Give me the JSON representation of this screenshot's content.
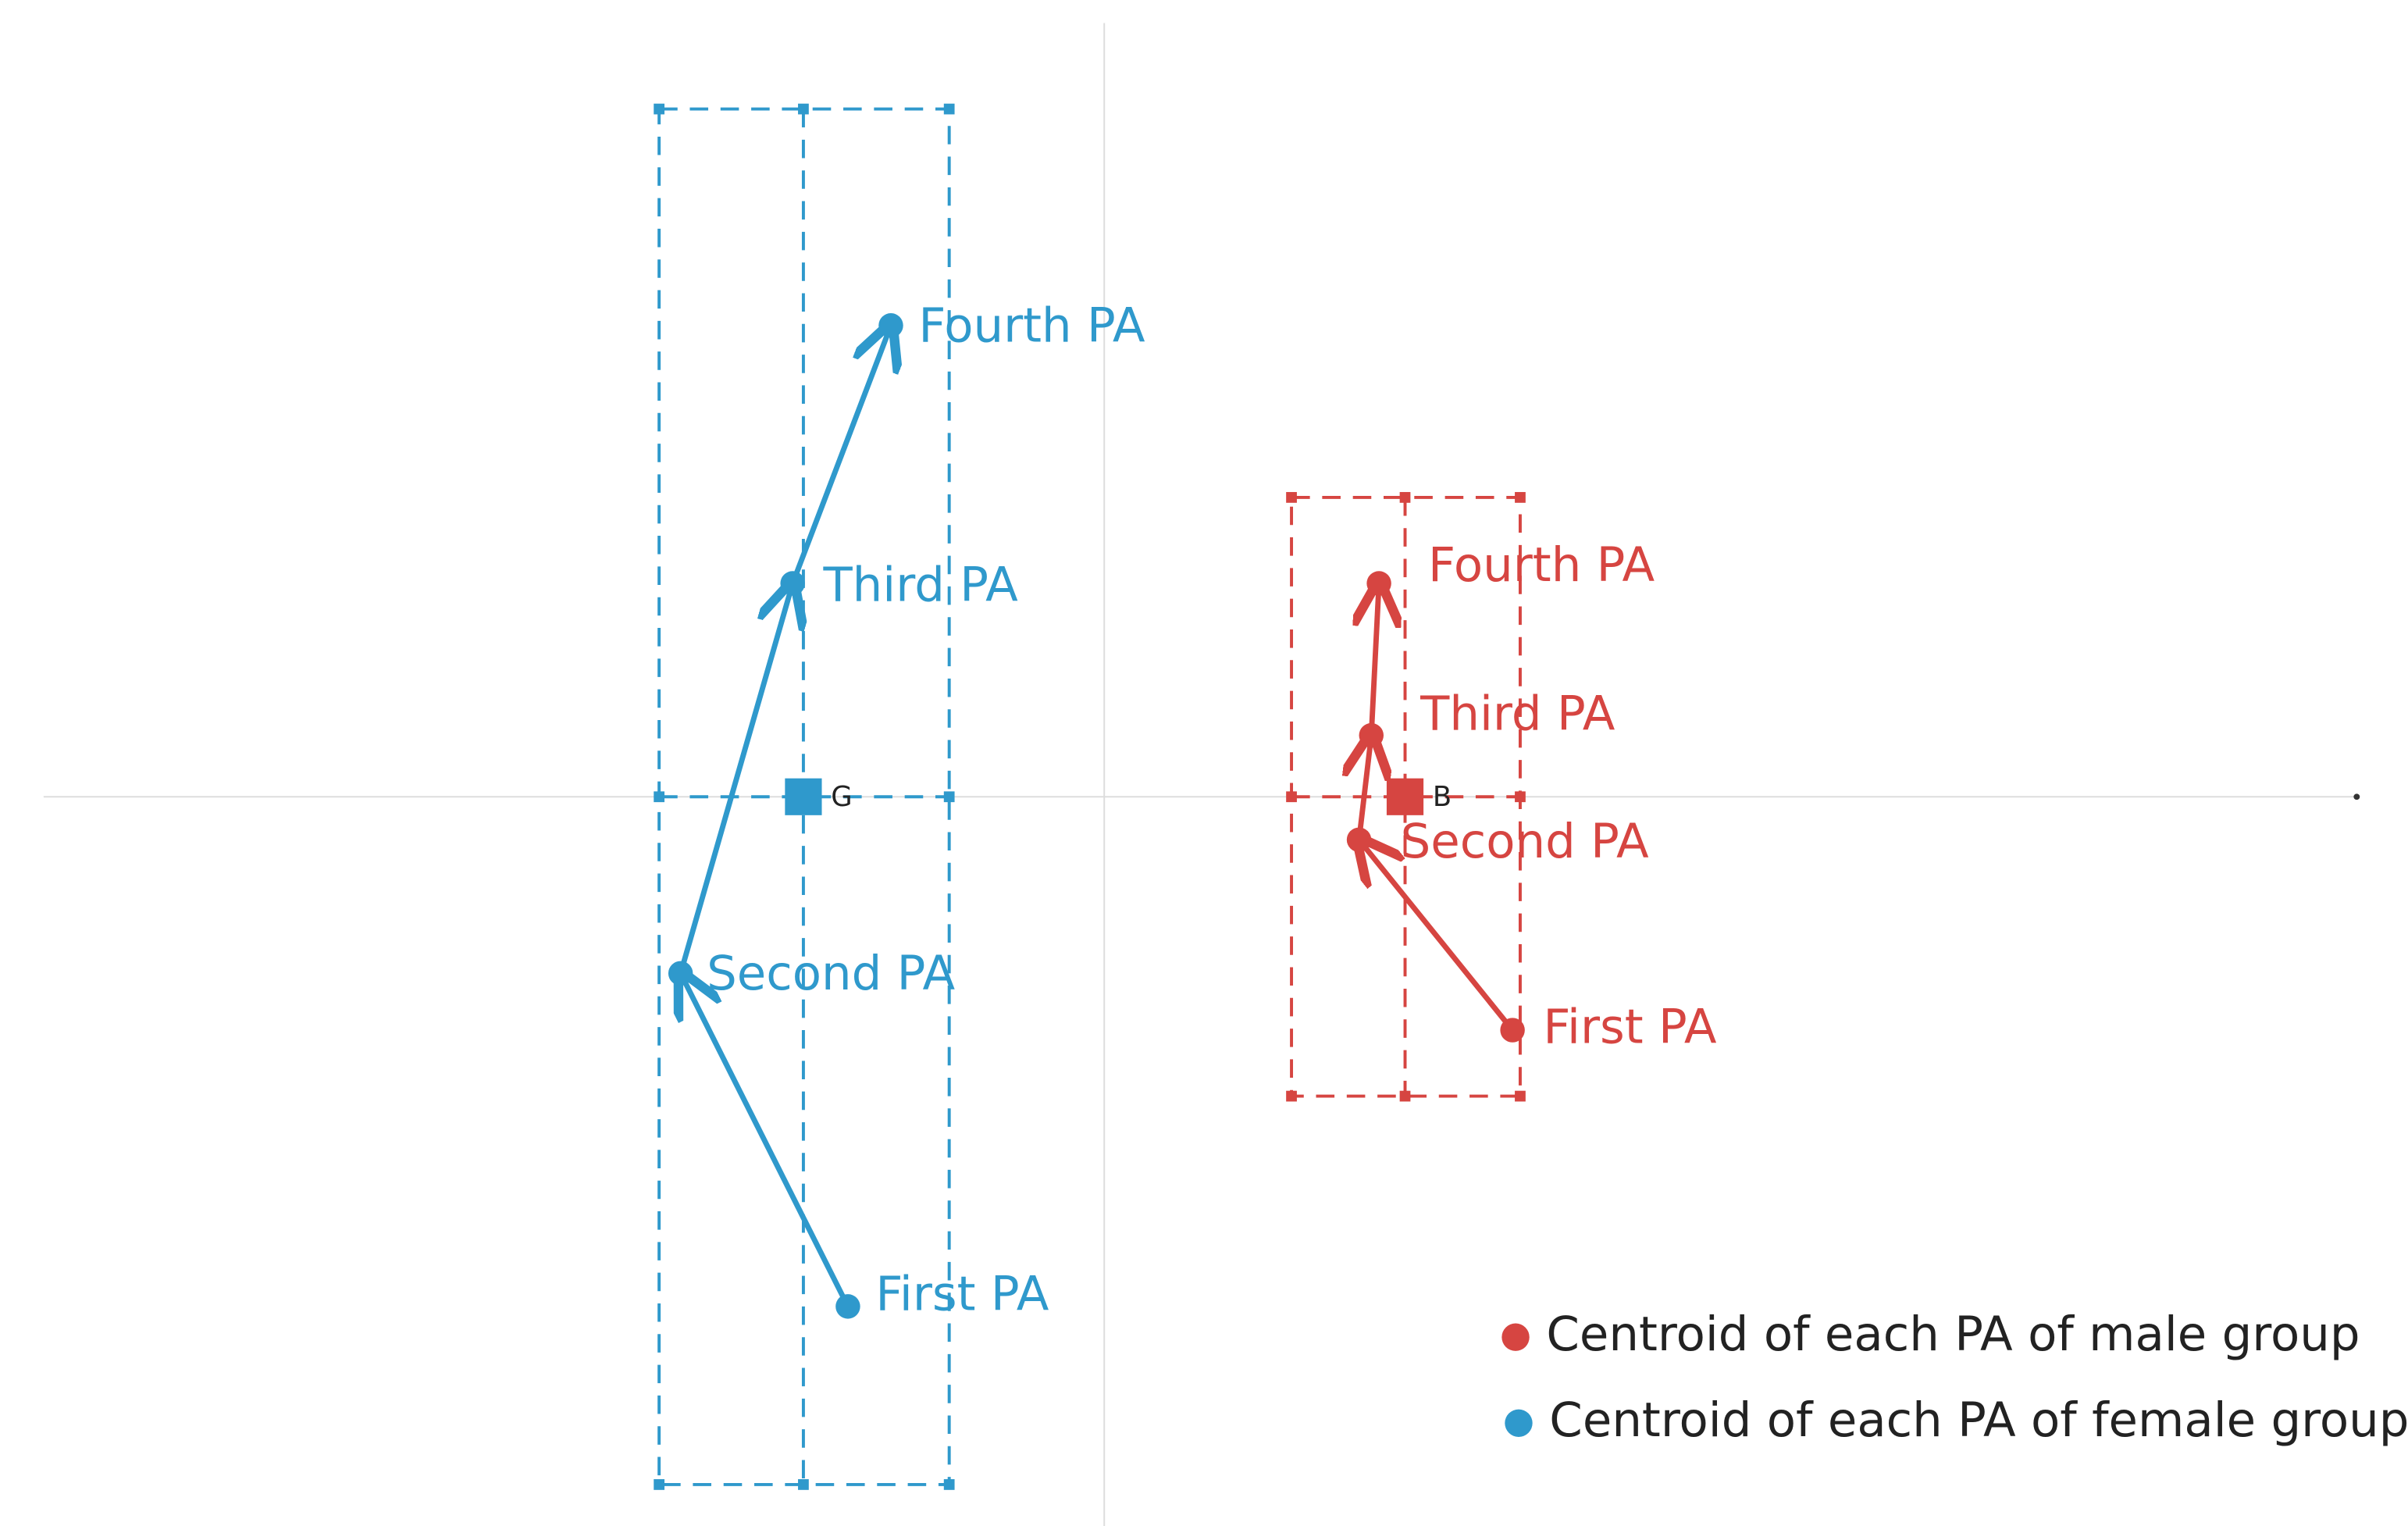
{
  "female": {
    "labels": [
      "Fourth PA",
      "Third PA",
      "Second PA",
      "First PA"
    ],
    "centroid": "G"
  },
  "male": {
    "labels": [
      "Fourth PA",
      "Third PA",
      "Second PA",
      "First PA"
    ],
    "centroid": "B"
  },
  "legend": [
    "Centroid of each PA of male group",
    "Centroid of each PA of female group"
  ]
}
